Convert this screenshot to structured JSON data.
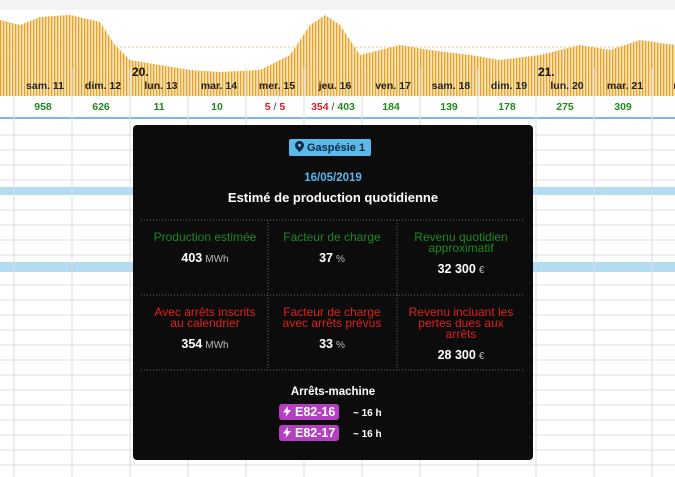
{
  "timeline": {
    "days": [
      {
        "label": "sam. 11",
        "values": [
          958
        ]
      },
      {
        "label": "dim. 12",
        "values": [
          626
        ]
      },
      {
        "label": "lun. 13",
        "marker": "20.",
        "values": [
          11
        ]
      },
      {
        "label": "mar. 14",
        "values": [
          10
        ]
      },
      {
        "label": "mer. 15",
        "values": [
          5,
          5
        ],
        "separator": "/"
      },
      {
        "label": "jeu. 16",
        "values": [
          354,
          403
        ],
        "separator": "/"
      },
      {
        "label": "ven. 17",
        "values": [
          184
        ]
      },
      {
        "label": "sam. 18",
        "values": [
          139
        ]
      },
      {
        "label": "dim. 19",
        "values": [
          178
        ]
      },
      {
        "label": "lun. 20",
        "marker": "21.",
        "values": [
          275
        ]
      },
      {
        "label": "mar. 21",
        "values": [
          309
        ]
      },
      {
        "label": "mer"
      }
    ]
  },
  "tooltip": {
    "site": "Gaspésie 1",
    "date": "16/05/2019",
    "title": "Estimé de production quotidienne",
    "cells": [
      {
        "label": "Production estimée",
        "value": "403",
        "unit": "MWh"
      },
      {
        "label": "Facteur de charge",
        "value": "37",
        "unit": "%"
      },
      {
        "label": "Revenu quotidien approximatif",
        "value": "32 300",
        "unit": "€"
      },
      {
        "label": "Avec arrêts inscrits au calendrier",
        "value": "354",
        "unit": "MWh"
      },
      {
        "label": "Facteur de charge avec arrêts prévus",
        "value": "33",
        "unit": "%"
      },
      {
        "label": "Revenu incluant les pertes dues aux arrêts",
        "value": "28 300",
        "unit": "€"
      }
    ],
    "stops_title": "Arrêts-machine",
    "stops": [
      {
        "name": "E82-16",
        "duration": "~ 16 h"
      },
      {
        "name": "E82-17",
        "duration": "~ 16 h"
      }
    ]
  }
}
